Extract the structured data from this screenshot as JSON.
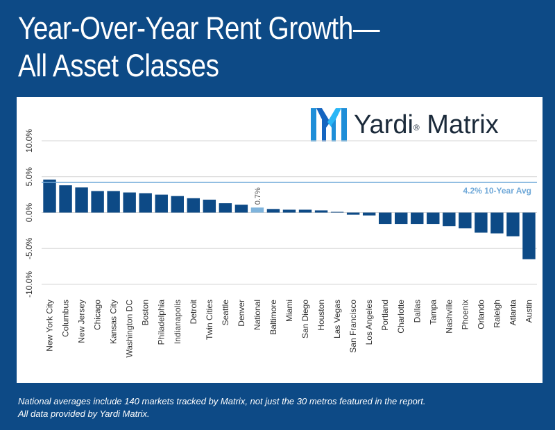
{
  "header": {
    "title_line1": "Year-Over-Year Rent Growth—",
    "title_line2": "All Asset Classes"
  },
  "logo": {
    "brand": "Yardi",
    "product": "Matrix",
    "mark": "®"
  },
  "footnote": {
    "line1": "National averages include 140 markets tracked by Matrix, not just the 30 metros featured in the report.",
    "line2": "All data provided by Yardi Matrix."
  },
  "colors": {
    "background": "#0d4a86",
    "bar": "#0d4a86",
    "national_bar": "#7fb4dc",
    "avg_line": "#6fa8d8",
    "grid": "#d6d6d6"
  },
  "chart_data": {
    "type": "bar",
    "title": "Year-Over-Year Rent Growth—All Asset Classes",
    "xlabel": "",
    "ylabel": "",
    "ylim": [
      -10,
      10
    ],
    "yticks": [
      -10,
      -5,
      0,
      5,
      10
    ],
    "ytick_labels": [
      "-10.0%",
      "-5.0%",
      "0.0%",
      "5.0%",
      "10.0%"
    ],
    "grid": true,
    "categories": [
      "New York City",
      "Columbus",
      "New Jersey",
      "Chicago",
      "Kansas City",
      "Washington DC",
      "Boston",
      "Philadelphia",
      "Indianapolis",
      "Detroit",
      "Twin Cities",
      "Seattle",
      "Denver",
      "National",
      "Baltimore",
      "Miami",
      "San Diego",
      "Houston",
      "Las Vegas",
      "San Francisco",
      "Los Angeles",
      "Portland",
      "Charlotte",
      "Dallas",
      "Tampa",
      "Nashville",
      "Phoenix",
      "Orlando",
      "Raleigh",
      "Atlanta",
      "Austin"
    ],
    "values": [
      4.6,
      3.8,
      3.5,
      3.0,
      3.0,
      2.8,
      2.7,
      2.5,
      2.3,
      2.0,
      1.8,
      1.3,
      1.1,
      0.7,
      0.5,
      0.4,
      0.4,
      0.3,
      0.1,
      -0.3,
      -0.4,
      -1.6,
      -1.6,
      -1.6,
      -1.6,
      -1.9,
      -2.2,
      -2.8,
      -2.9,
      -3.3,
      -6.5
    ],
    "highlight": "National",
    "data_labels": [
      {
        "category": "National",
        "text": "0.7%"
      }
    ],
    "reference_line": {
      "value": 4.2,
      "label": "4.2% 10-Year Avg"
    }
  }
}
